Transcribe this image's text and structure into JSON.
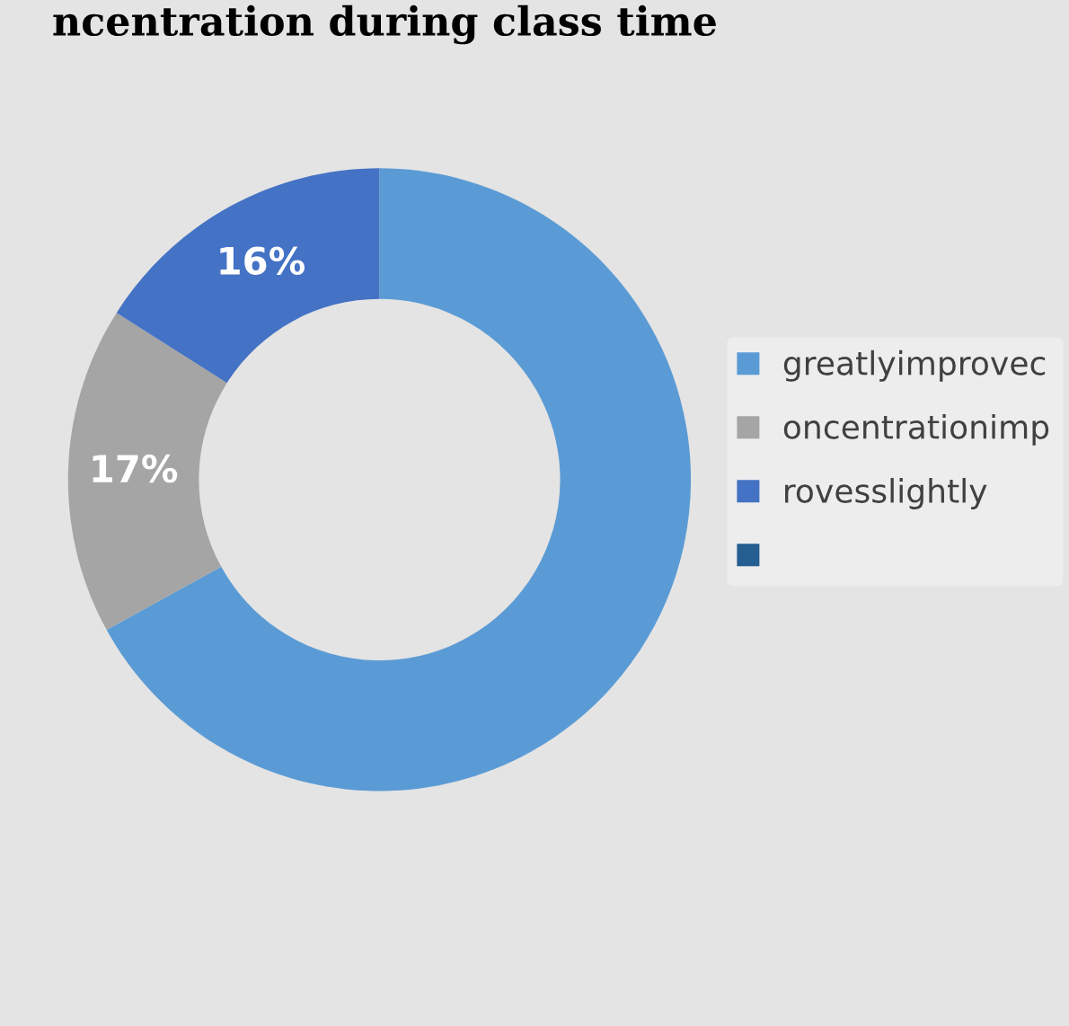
{
  "chart_data": {
    "type": "donut",
    "title": "ncentration during class time",
    "categories": [
      "greatlyimprovec",
      "oncentrationimp",
      "rovesslightly",
      null
    ],
    "values": [
      67,
      17,
      16,
      0
    ],
    "colors": [
      "#5b9bd5",
      "#a5a5a5",
      "#4472c4",
      "#255e91"
    ],
    "value_labels": [
      null,
      "17%",
      "16%",
      null
    ],
    "legend": "right"
  }
}
